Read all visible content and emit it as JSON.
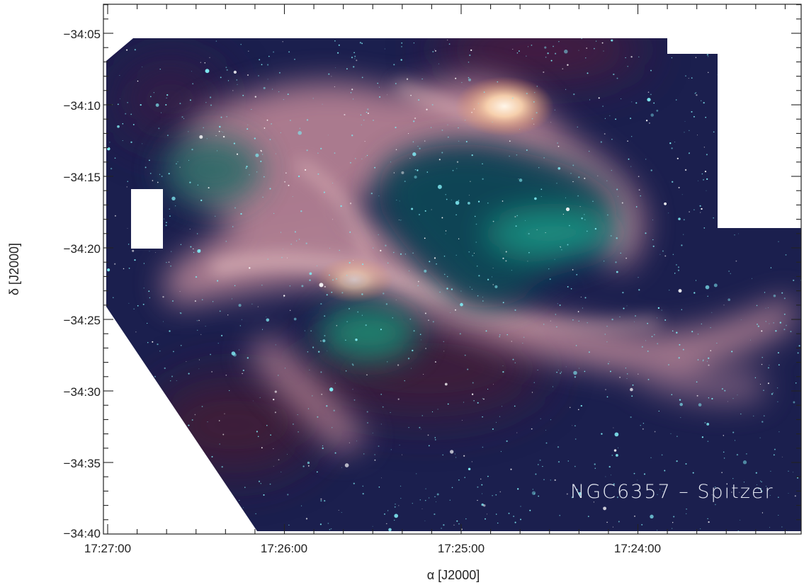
{
  "figure": {
    "caption": "NGC6357 – Spitzer",
    "colors": {
      "background": "#ffffff",
      "sky_base": "#1b1f4e",
      "nebula_pink": "#cf9aa2",
      "cavity_teal": "#1f7f7a",
      "bright_core": "#ffe6c8",
      "star_cyan": "#7fe9f2"
    }
  },
  "axes": {
    "x_title": "α [J2000]",
    "y_title": "δ [J2000]",
    "x_ticks": [
      "17:27:00",
      "17:26:00",
      "17:25:00",
      "17:24:00"
    ],
    "y_ticks": [
      "−34:05",
      "−34:10",
      "−34:15",
      "−34:20",
      "−34:25",
      "−34:30",
      "−34:35",
      "−34:40"
    ]
  }
}
